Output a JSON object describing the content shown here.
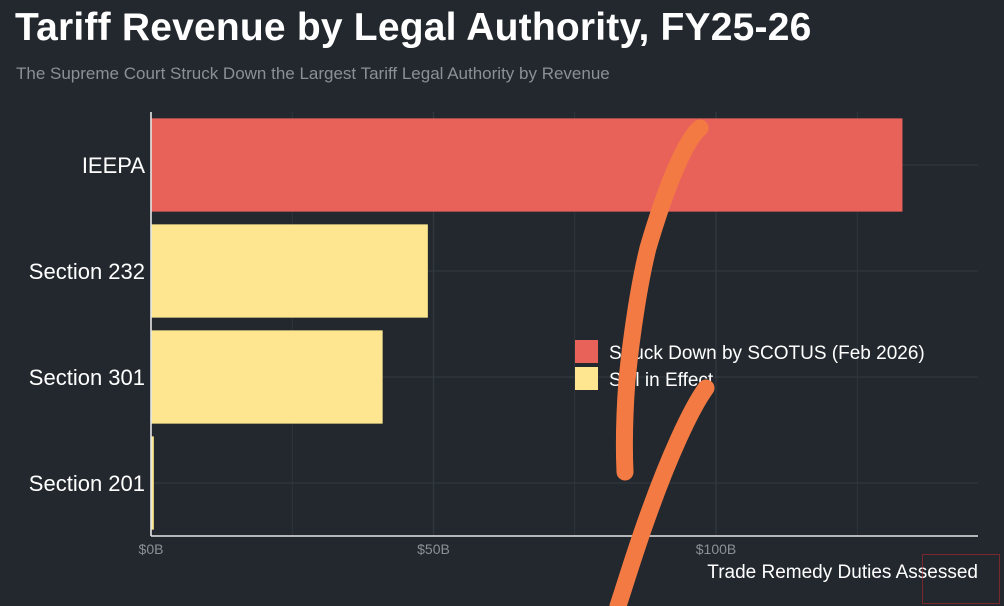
{
  "title": "Tariff Revenue by Legal Authority, FY25-26",
  "subtitle": "The Supreme Court Struck Down the Largest Tariff Legal Authority by Revenue",
  "colors": {
    "background": "#22282d",
    "struck_down": "#e8625a",
    "still_in_effect": "#fde68f",
    "grid": "#31383e",
    "axis": "#e6e6e6",
    "annotation_stroke": "#f47a44"
  },
  "chart_data": {
    "type": "bar",
    "orientation": "horizontal",
    "categories": [
      "IEEPA",
      "Section 232",
      "Section 301",
      "Section 201"
    ],
    "values": [
      133,
      49,
      41,
      0.5
    ],
    "groups": [
      "Struck Down by SCOTUS (Feb 2026)",
      "Still in Effect",
      "Still in Effect",
      "Still in Effect"
    ],
    "xlabel": "Trade Remedy Duties Assessed",
    "xlim": [
      0,
      145
    ],
    "xticks": [
      0,
      50,
      100
    ],
    "xtick_labels": [
      "$0B",
      "$50B",
      "$100B"
    ],
    "legend": {
      "placement": "right-center",
      "entries": [
        {
          "label": "Struck Down by SCOTUS (Feb 2026)",
          "color": "#e8625a"
        },
        {
          "label": "Still in Effect",
          "color": "#fde68f"
        }
      ]
    },
    "grid": true
  }
}
